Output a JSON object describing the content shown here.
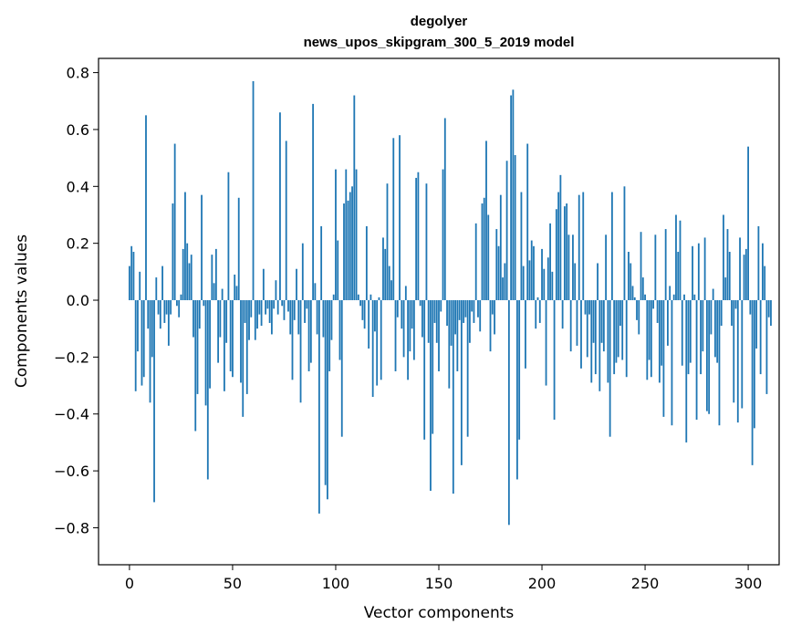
{
  "chart_data": {
    "type": "bar",
    "title": "degolyer",
    "subtitle": "news_upos_skipgram_300_5_2019 model",
    "xlabel": "Vector components",
    "ylabel": "Components values",
    "xlim": [
      -15,
      315
    ],
    "ylim": [
      -0.93,
      0.85
    ],
    "xticks": [
      0,
      50,
      100,
      150,
      200,
      250,
      300
    ],
    "yticks": [
      -0.8,
      -0.6,
      -0.4,
      -0.2,
      0.0,
      0.2,
      0.4,
      0.6,
      0.8
    ],
    "ytick_labels": [
      "−0.8",
      "−0.6",
      "−0.4",
      "−0.2",
      "0.0",
      "0.2",
      "0.4",
      "0.6",
      "0.8"
    ],
    "xtick_labels": [
      "0",
      "50",
      "100",
      "150",
      "200",
      "250",
      "300"
    ],
    "bar_color": "#1f77b4",
    "grid": false,
    "values": [
      0.12,
      0.19,
      0.17,
      -0.32,
      -0.18,
      0.1,
      -0.3,
      -0.27,
      0.65,
      -0.1,
      -0.36,
      -0.2,
      -0.71,
      0.08,
      -0.05,
      -0.1,
      0.12,
      -0.08,
      -0.05,
      -0.16,
      -0.05,
      0.34,
      0.55,
      -0.02,
      -0.06,
      0.02,
      0.18,
      0.38,
      0.2,
      0.13,
      0.16,
      -0.13,
      -0.46,
      -0.33,
      -0.1,
      0.37,
      -0.02,
      -0.37,
      -0.63,
      -0.31,
      0.16,
      0.06,
      0.18,
      -0.22,
      -0.13,
      0.04,
      -0.32,
      -0.15,
      0.45,
      -0.25,
      -0.27,
      0.09,
      0.05,
      0.36,
      -0.29,
      -0.41,
      -0.08,
      -0.33,
      -0.14,
      -0.06,
      0.77,
      -0.14,
      -0.1,
      -0.05,
      -0.09,
      0.11,
      -0.05,
      -0.03,
      -0.08,
      -0.12,
      -0.03,
      0.07,
      -0.05,
      0.66,
      -0.02,
      -0.07,
      0.56,
      -0.04,
      -0.12,
      -0.28,
      -0.07,
      0.11,
      -0.12,
      -0.36,
      0.2,
      -0.08,
      -0.03,
      -0.25,
      -0.22,
      0.69,
      0.06,
      -0.12,
      -0.75,
      0.26,
      -0.13,
      -0.65,
      -0.7,
      -0.25,
      -0.14,
      0.02,
      0.46,
      0.21,
      -0.21,
      -0.48,
      0.34,
      0.46,
      0.35,
      0.38,
      0.4,
      0.72,
      0.46,
      0.02,
      -0.02,
      -0.07,
      -0.1,
      0.26,
      -0.17,
      0.02,
      -0.34,
      -0.11,
      -0.3,
      0.01,
      -0.28,
      0.22,
      0.18,
      0.41,
      0.12,
      0.07,
      0.57,
      -0.25,
      -0.06,
      0.58,
      -0.1,
      -0.2,
      0.05,
      -0.28,
      -0.18,
      -0.1,
      -0.21,
      0.43,
      0.45,
      -0.02,
      -0.13,
      -0.49,
      0.41,
      -0.15,
      -0.67,
      -0.47,
      -0.08,
      -0.15,
      -0.25,
      -0.04,
      0.46,
      0.64,
      -0.09,
      -0.31,
      -0.16,
      -0.68,
      -0.12,
      -0.25,
      -0.07,
      -0.58,
      -0.08,
      -0.06,
      -0.48,
      -0.15,
      -0.04,
      -0.08,
      0.27,
      -0.06,
      -0.11,
      0.34,
      0.36,
      0.56,
      0.3,
      -0.18,
      -0.05,
      -0.12,
      0.25,
      0.19,
      0.37,
      0.08,
      0.13,
      0.49,
      -0.79,
      0.72,
      0.74,
      0.51,
      -0.63,
      -0.49,
      0.38,
      0.12,
      -0.24,
      0.55,
      0.14,
      0.21,
      0.19,
      -0.1,
      0.01,
      -0.08,
      0.18,
      0.11,
      -0.3,
      0.15,
      0.27,
      0.1,
      -0.42,
      0.32,
      0.38,
      0.44,
      -0.1,
      0.33,
      0.34,
      0.23,
      -0.18,
      0.23,
      0.13,
      -0.16,
      0.37,
      -0.24,
      0.38,
      -0.05,
      -0.2,
      -0.05,
      -0.29,
      -0.15,
      -0.26,
      0.13,
      -0.32,
      -0.15,
      -0.18,
      0.23,
      -0.29,
      -0.48,
      0.38,
      -0.26,
      -0.22,
      -0.2,
      -0.09,
      -0.21,
      0.4,
      -0.27,
      0.17,
      0.13,
      0.05,
      0.01,
      -0.07,
      -0.12,
      0.24,
      0.08,
      0.02,
      -0.28,
      -0.21,
      -0.27,
      -0.03,
      0.23,
      -0.08,
      -0.29,
      -0.23,
      -0.41,
      0.25,
      -0.16,
      0.05,
      -0.44,
      0.02,
      0.3,
      0.17,
      0.28,
      -0.23,
      0.02,
      -0.5,
      -0.26,
      -0.22,
      0.19,
      0.02,
      -0.42,
      0.2,
      -0.26,
      -0.18,
      0.22,
      -0.39,
      -0.4,
      -0.12,
      0.04,
      -0.2,
      -0.22,
      -0.44,
      -0.09,
      0.3,
      0.08,
      0.25,
      0.17,
      -0.09,
      -0.36,
      -0.03,
      -0.43,
      0.22,
      -0.38,
      0.16,
      0.18,
      0.54,
      -0.05,
      -0.58,
      -0.45,
      -0.17,
      0.26,
      -0.26,
      0.2,
      0.12,
      -0.33,
      -0.06,
      -0.09
    ]
  }
}
